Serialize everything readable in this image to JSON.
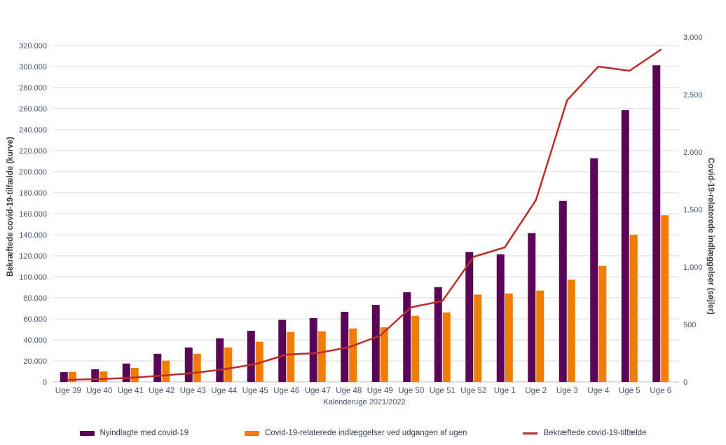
{
  "chart_data": {
    "type": "combo-bar-line",
    "categories": [
      "Uge 39",
      "Uge 40",
      "Uge 41",
      "Uge 42",
      "Uge 43",
      "Uge 44",
      "Uge 45",
      "Uge 46",
      "Uge 47",
      "Uge 48",
      "Uge 49",
      "Uge 50",
      "Uge 51",
      "Uge 52",
      "Uge 1",
      "Uge 2",
      "Uge 3",
      "Uge 4",
      "Uge 5",
      "Uge 6"
    ],
    "series": [
      {
        "name": "Nyindlagte med covid-19",
        "type": "bar",
        "axis": "right",
        "color": "#5A0555",
        "values": [
          85,
          110,
          160,
          245,
          300,
          380,
          445,
          540,
          555,
          610,
          670,
          780,
          825,
          1130,
          1110,
          1295,
          1575,
          1945,
          2365,
          2755
        ]
      },
      {
        "name": "Covid-19-relaterede indlæggelser ved udgangen af ugen",
        "type": "bar",
        "axis": "right",
        "color": "#F07D00",
        "values": [
          88,
          92,
          122,
          185,
          245,
          300,
          350,
          435,
          440,
          465,
          475,
          575,
          605,
          760,
          770,
          795,
          890,
          1010,
          1280,
          1450
        ]
      },
      {
        "name": "Bekræftede covid-19-tilfælde",
        "type": "line",
        "axis": "left",
        "color": "#BE2B2B",
        "values": [
          2000,
          2700,
          4000,
          6000,
          8500,
          12000,
          17000,
          26000,
          27500,
          33000,
          44000,
          71000,
          77000,
          119000,
          128000,
          173000,
          268000,
          300000,
          296000,
          316000
        ]
      }
    ],
    "title": "",
    "xlabel": "Kalenderuge 2021/2022",
    "ylabel_left": "Bekræftede covid-19-tilfælde (kurve)",
    "ylabel_right": "Covid-19-relaterede indlæggelser (søjler)",
    "ylim_left": [
      0,
      320000
    ],
    "ytick_step_left": 20000,
    "ylim_right": [
      0,
      3000
    ],
    "ytick_step_right": 500,
    "grid": true,
    "legend_position": "bottom",
    "colors": {
      "gridline": "#D9D9D9",
      "axis_line": "#BFBFBF",
      "tick_text": "#44546A",
      "bar_new_admissions": "#5A0555",
      "bar_hospitalized_end_of_week": "#F07D00",
      "line_confirmed_cases": "#BE2B2B"
    }
  },
  "legend": {
    "items": [
      {
        "label": "Nyindlagte med covid-19",
        "color": "#5A0555",
        "shape": "bar"
      },
      {
        "label": "Covid-19-relaterede indlæggelser ved udgangen af ugen",
        "color": "#F07D00",
        "shape": "bar"
      },
      {
        "label": "Bekræftede covid-19-tilfælde",
        "color": "#BE2B2B",
        "shape": "line"
      }
    ]
  },
  "axes": {
    "left_title": "Bekræftede covid-19-tilfælde (kurve)",
    "right_title": "Covid-19-relaterede indlæggelser (søjler)",
    "x_title": "Kalenderuge 2021/2022"
  }
}
